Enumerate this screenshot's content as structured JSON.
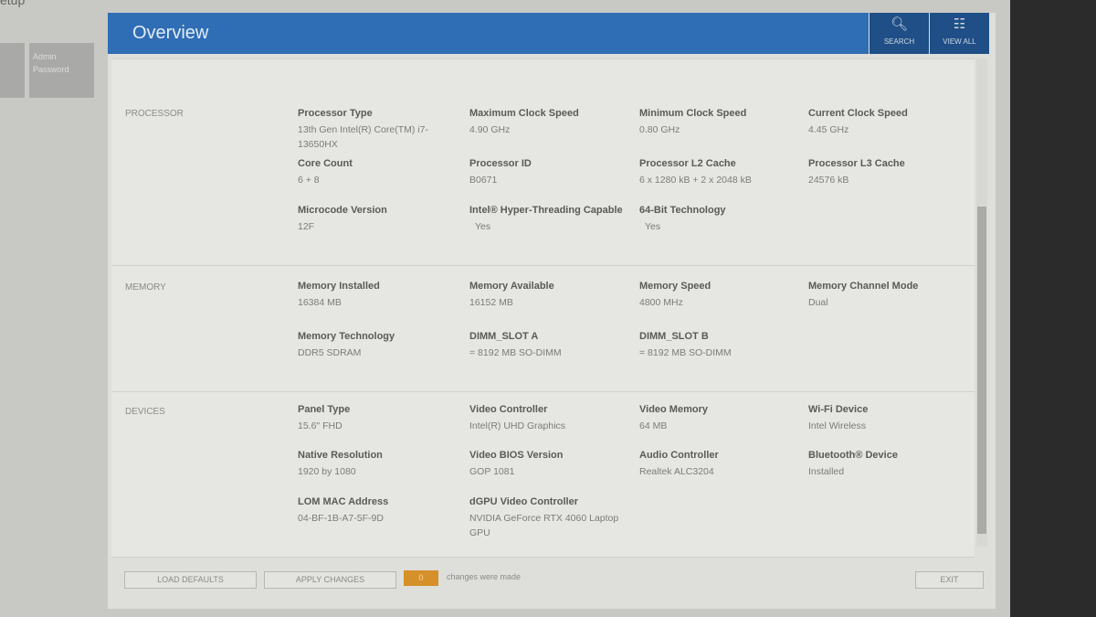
{
  "app_title": "etup",
  "sidebar": {
    "tiles": [
      {
        "label": ""
      },
      {
        "label": "Admin Password"
      }
    ]
  },
  "header": {
    "title": "Overview",
    "search_label": "SEARCH",
    "view_all_label": "VIEW ALL"
  },
  "sections": [
    {
      "title": "PROCESSOR",
      "fields": [
        {
          "label": "Processor Type",
          "value": "13th Gen Intel(R) Core(TM) i7-13650HX"
        },
        {
          "label": "Maximum Clock Speed",
          "value": "4.90 GHz"
        },
        {
          "label": "Minimum Clock Speed",
          "value": "0.80 GHz"
        },
        {
          "label": "Current Clock Speed",
          "value": "4.45 GHz"
        },
        {
          "label": "Core Count",
          "value": "6 + 8"
        },
        {
          "label": "Processor ID",
          "value": "B0671"
        },
        {
          "label": "Processor L2 Cache",
          "value": "6 x 1280  kB + 2 x 2048  kB"
        },
        {
          "label": "Processor L3 Cache",
          "value": "24576 kB"
        },
        {
          "label": "Microcode Version",
          "value": "12F"
        },
        {
          "label": "Intel® Hyper-Threading Capable",
          "value": "Yes"
        },
        {
          "label": "64-Bit Technology",
          "value": "Yes"
        }
      ]
    },
    {
      "title": "MEMORY",
      "fields": [
        {
          "label": "Memory Installed",
          "value": "16384 MB"
        },
        {
          "label": "Memory Available",
          "value": "16152 MB"
        },
        {
          "label": "Memory Speed",
          "value": "4800 MHz"
        },
        {
          "label": "Memory Channel Mode",
          "value": "Dual"
        },
        {
          "label": "Memory Technology",
          "value": "DDR5 SDRAM"
        },
        {
          "label": "DIMM_SLOT A",
          "value": "= 8192 MB SO-DIMM"
        },
        {
          "label": "DIMM_SLOT B",
          "value": "= 8192 MB SO-DIMM"
        }
      ]
    },
    {
      "title": "DEVICES",
      "fields": [
        {
          "label": "Panel Type",
          "value": "15.6\" FHD"
        },
        {
          "label": "Video Controller",
          "value": "Intel(R) UHD Graphics"
        },
        {
          "label": "Video Memory",
          "value": "64 MB"
        },
        {
          "label": "Wi-Fi Device",
          "value": "Intel Wireless"
        },
        {
          "label": "Native Resolution",
          "value": "1920 by 1080"
        },
        {
          "label": "Video BIOS Version",
          "value": "GOP 1081"
        },
        {
          "label": "Audio Controller",
          "value": "Realtek ALC3204"
        },
        {
          "label": "Bluetooth® Device",
          "value": "Installed"
        },
        {
          "label": "LOM MAC Address",
          "value": "04-BF-1B-A7-5F-9D"
        },
        {
          "label": "dGPU Video Controller",
          "value": "NVIDIA GeForce RTX 4060 Laptop GPU"
        }
      ]
    }
  ],
  "footer": {
    "load_defaults": "LOAD DEFAULTS",
    "apply_changes": "APPLY CHANGES",
    "changes_count": "0",
    "changes_text": "changes were made",
    "exit": "EXIT"
  },
  "colors": {
    "header": "#2f6db5",
    "header_buttons": "#1f4f86",
    "badge": "#d5902a"
  }
}
